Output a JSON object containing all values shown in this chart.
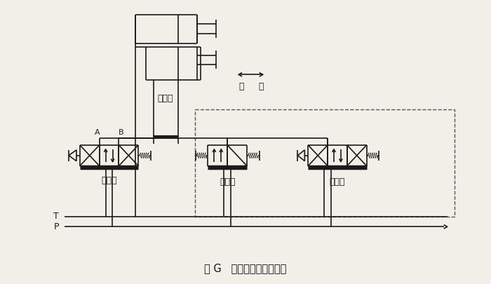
{
  "title": "图 G   静叶调整阀组原理图",
  "bg_color": "#f2efe9",
  "line_color": "#1a1a1a",
  "label_servo_cylinder": "伺服缸",
  "label_open": "开",
  "label_close": "关",
  "label_servo_valve": "伺服阀",
  "label_dv1": "换向阀",
  "label_dv2": "换向阀",
  "label_T": "T",
  "label_P": "P",
  "label_A": "A",
  "label_B": "B"
}
